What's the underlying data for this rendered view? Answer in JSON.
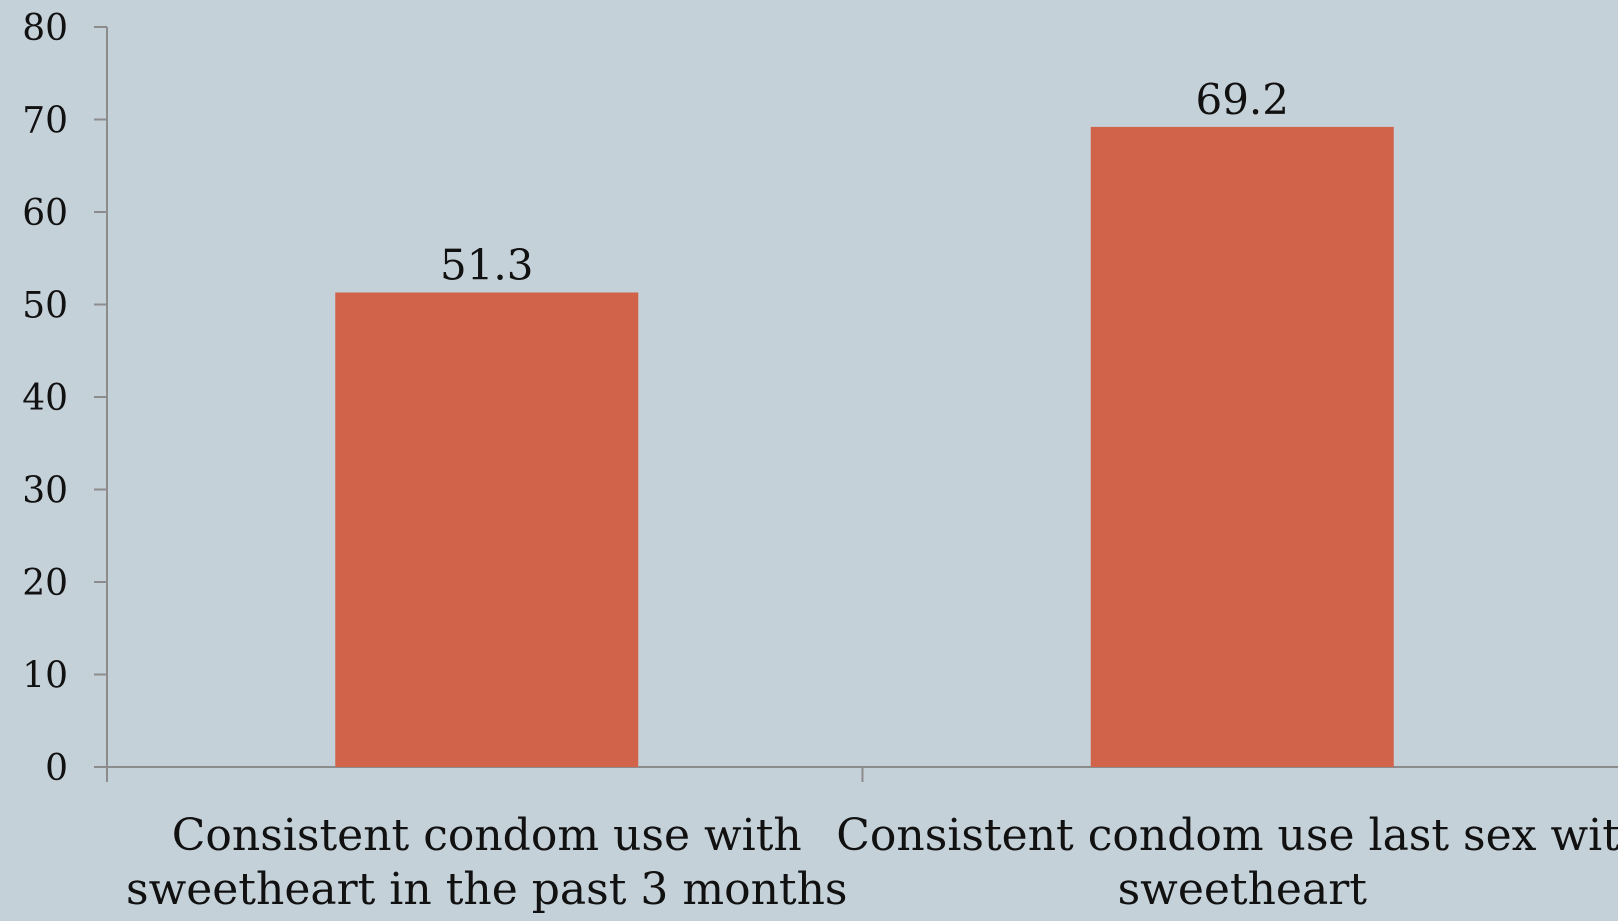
{
  "chart_data": {
    "type": "bar",
    "title": "",
    "xlabel": "",
    "ylabel": "",
    "categories": [
      [
        "Consistent condom use with",
        "sweetheart in the past 3 months"
      ],
      [
        "Consistent condom use last sex with",
        "sweetheart"
      ]
    ],
    "values": [
      51.3,
      69.2
    ],
    "value_labels": [
      "51.3",
      "69.2"
    ],
    "ylim": [
      0,
      80
    ],
    "yticks": [
      0,
      10,
      20,
      30,
      40,
      50,
      60,
      70,
      80
    ],
    "grid": false,
    "legend": "none",
    "colors": {
      "bar": "#d1634a",
      "background": "#c5d1d8",
      "axis": "#8c8c8c",
      "text": "#111111"
    }
  }
}
